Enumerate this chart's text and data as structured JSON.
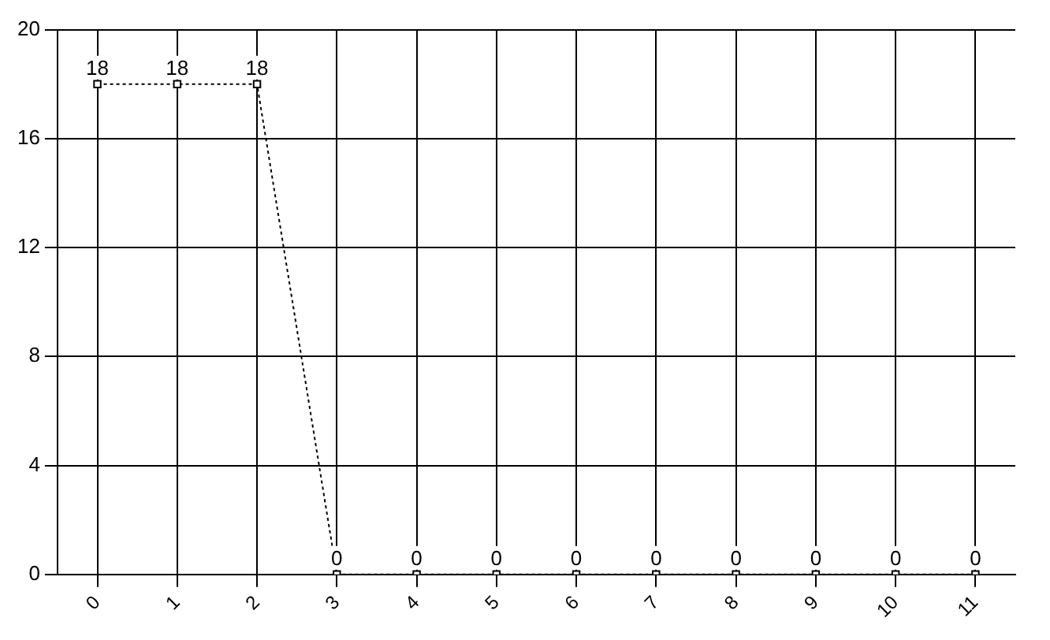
{
  "chart_data": {
    "type": "line",
    "categories": [
      "0",
      "1",
      "2",
      "3",
      "4",
      "5",
      "6",
      "7",
      "8",
      "9",
      "10",
      "11"
    ],
    "series": [
      {
        "color": "#000000",
        "values": [
          18,
          18,
          18,
          0,
          0,
          0,
          0,
          0,
          0,
          0,
          0,
          0
        ]
      }
    ],
    "ylim": [
      0,
      20
    ],
    "yticks": [
      0,
      4,
      8,
      12,
      16,
      20
    ],
    "grid": true,
    "legend": false,
    "marker": "square",
    "line_style": "dotted",
    "data_labels": true
  }
}
